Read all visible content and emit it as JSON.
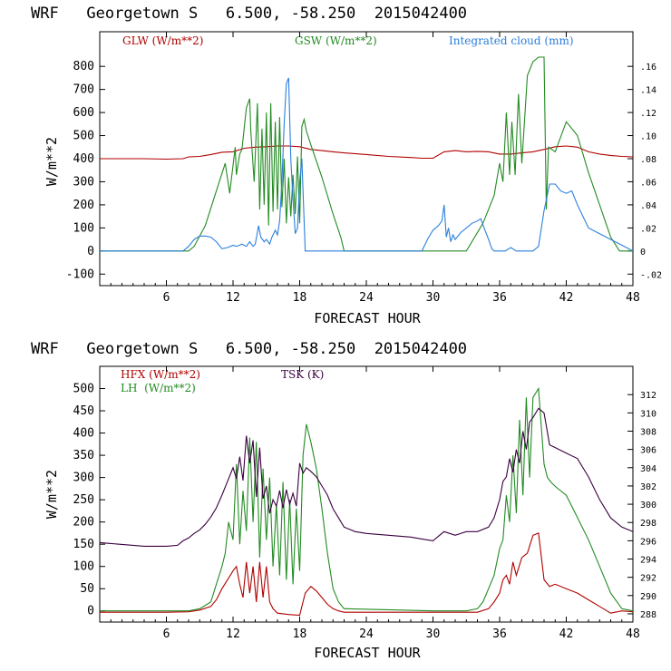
{
  "chart_data": [
    {
      "type": "line",
      "title": "WRF   Georgetown S   6.500, -58.250  2015042400",
      "xlabel": "FORECAST HOUR",
      "ylabel": "W/m**2",
      "xlim": [
        0,
        48
      ],
      "ylim": [
        -150,
        950
      ],
      "xticks": [
        6,
        12,
        18,
        24,
        30,
        36,
        42,
        48
      ],
      "yticks": [
        -100,
        0,
        100,
        200,
        300,
        400,
        500,
        600,
        700,
        800
      ],
      "y2lim": [
        -0.03,
        0.19
      ],
      "y2ticks": [
        -0.02,
        0,
        0.02,
        0.04,
        0.06,
        0.08,
        0.1,
        0.12,
        0.14,
        0.16
      ],
      "y2ticklabels": [
        "-.02",
        "0",
        ".02",
        ".04",
        ".06",
        ".08",
        ".10",
        ".12",
        ".14",
        ".16"
      ],
      "series": [
        {
          "name": "GLW (W/m**2)",
          "color": "#b00000",
          "axis": "left",
          "x": [
            0,
            4,
            6,
            7.5,
            8,
            9,
            10,
            11,
            12,
            13,
            14,
            15,
            16,
            17,
            18,
            19,
            20,
            21,
            22,
            24,
            26,
            28,
            29,
            30,
            31,
            32,
            33,
            34,
            35,
            36,
            37,
            38,
            39,
            40,
            41,
            42,
            43,
            44,
            45,
            46,
            47,
            48
          ],
          "y": [
            400,
            400,
            398,
            400,
            408,
            410,
            418,
            428,
            430,
            445,
            450,
            452,
            455,
            455,
            452,
            440,
            435,
            430,
            425,
            418,
            410,
            405,
            402,
            402,
            430,
            435,
            430,
            432,
            430,
            420,
            420,
            425,
            430,
            440,
            452,
            455,
            450,
            430,
            420,
            414,
            410,
            408
          ]
        },
        {
          "name": "GSW (W/m**2)",
          "color": "#228b22",
          "axis": "left",
          "x": [
            0,
            8,
            8.5,
            9.5,
            10.5,
            11.3,
            11.7,
            12.2,
            12.3,
            12.6,
            12.8,
            13.2,
            13.5,
            13.6,
            13.9,
            14.2,
            14.4,
            14.6,
            14.8,
            15,
            15.2,
            15.4,
            15.6,
            15.8,
            16,
            16.2,
            16.4,
            16.6,
            16.8,
            17,
            17.2,
            17.4,
            17.6,
            17.8,
            18,
            18.2,
            18.4,
            18.6,
            19,
            20,
            21,
            21.7,
            22,
            29,
            33,
            34.5,
            35.5,
            36,
            36.3,
            36.6,
            36.9,
            37.1,
            37.4,
            37.7,
            38,
            38.5,
            39,
            39.5,
            40,
            40.2,
            40.4,
            41,
            42,
            43,
            44,
            45,
            46,
            46.8,
            48
          ],
          "y": [
            0,
            0,
            20,
            110,
            260,
            380,
            250,
            450,
            330,
            420,
            440,
            620,
            660,
            520,
            300,
            640,
            180,
            530,
            200,
            600,
            110,
            640,
            170,
            560,
            180,
            580,
            190,
            400,
            120,
            320,
            150,
            330,
            160,
            410,
            120,
            540,
            570,
            520,
            460,
            320,
            160,
            60,
            0,
            0,
            0,
            120,
            240,
            380,
            300,
            600,
            330,
            560,
            330,
            680,
            380,
            760,
            820,
            840,
            840,
            180,
            450,
            430,
            560,
            500,
            340,
            200,
            60,
            0,
            0
          ]
        },
        {
          "name": "Integrated cloud (mm)",
          "color": "#2a7fdc",
          "axis": "right",
          "x": [
            0,
            7.5,
            8,
            8.5,
            9,
            9.5,
            10,
            10.5,
            11,
            11.5,
            12,
            12.3,
            12.8,
            13.2,
            13.5,
            13.8,
            14,
            14.3,
            14.5,
            14.8,
            15,
            15.3,
            15.5,
            15.8,
            16,
            16.2,
            16.4,
            16.6,
            16.8,
            17,
            17.2,
            17.4,
            17.6,
            17.8,
            18,
            18.2,
            18.5,
            29,
            29.5,
            30,
            30.5,
            30.8,
            31,
            31.2,
            31.4,
            31.6,
            31.8,
            32,
            32.5,
            33,
            33.5,
            34,
            34.3,
            34.6,
            35,
            35.3,
            35.5,
            36,
            36.5,
            37,
            37.5,
            38,
            38.5,
            39,
            39.5,
            40,
            40.5,
            41,
            41.5,
            42,
            42.5,
            43,
            43.5,
            44,
            48
          ],
          "y": [
            0,
            0,
            0.004,
            0.01,
            0.013,
            0.013,
            0.012,
            0.008,
            0.002,
            0.003,
            0.005,
            0.004,
            0.006,
            0.004,
            0.008,
            0.004,
            0.006,
            0.022,
            0.012,
            0.008,
            0.01,
            0.006,
            0.012,
            0.018,
            0.014,
            0.026,
            0.06,
            0.11,
            0.145,
            0.15,
            0.08,
            0.045,
            0.015,
            0.02,
            0.06,
            0.08,
            0,
            0,
            0.01,
            0.018,
            0.022,
            0.026,
            0.04,
            0.012,
            0.02,
            0.008,
            0.014,
            0.01,
            0.016,
            0.02,
            0.024,
            0.026,
            0.028,
            0.02,
            0.01,
            0.002,
            0,
            0,
            0,
            0.003,
            0,
            0,
            0,
            0,
            0.004,
            0.035,
            0.058,
            0.058,
            0.052,
            0.05,
            0.052,
            0.04,
            0.03,
            0.02,
            0
          ]
        }
      ]
    },
    {
      "type": "line",
      "title": "WRF   Georgetown S   6.500, -58.250  2015042400",
      "xlabel": "FORECAST HOUR",
      "ylabel": "W/m**2",
      "xlim": [
        0,
        48
      ],
      "ylim": [
        -25,
        550
      ],
      "xticks": [
        6,
        12,
        18,
        24,
        30,
        36,
        42,
        48
      ],
      "yticks": [
        0,
        50,
        100,
        150,
        200,
        250,
        300,
        350,
        400,
        450,
        500
      ],
      "y2lim": [
        287.1,
        315.1
      ],
      "y2ticks": [
        288,
        290,
        292,
        294,
        296,
        298,
        300,
        302,
        304,
        306,
        308,
        310,
        312
      ],
      "series": [
        {
          "name": "HFX (W/m**2)",
          "color": "#b00000",
          "axis": "left",
          "x": [
            0,
            6,
            8,
            9,
            10,
            10.5,
            11,
            11.5,
            12,
            12.3,
            12.6,
            12.9,
            13.2,
            13.5,
            13.8,
            14.1,
            14.4,
            14.7,
            15,
            15.3,
            15.6,
            16,
            17,
            18,
            18.5,
            19,
            19.5,
            20,
            20.5,
            21,
            21.5,
            22,
            30,
            34,
            35,
            35.5,
            36,
            36.3,
            36.6,
            36.9,
            37.2,
            37.5,
            38,
            38.5,
            39,
            39.5,
            40,
            40.5,
            41,
            42,
            43,
            44,
            45,
            46,
            47,
            48
          ],
          "y": [
            -3,
            -3,
            -2,
            2,
            10,
            25,
            50,
            70,
            90,
            100,
            60,
            30,
            110,
            40,
            100,
            20,
            110,
            30,
            100,
            20,
            5,
            -5,
            -8,
            -10,
            40,
            55,
            45,
            30,
            15,
            5,
            0,
            -3,
            -3,
            -3,
            5,
            20,
            40,
            70,
            80,
            60,
            110,
            80,
            120,
            130,
            170,
            175,
            70,
            55,
            60,
            50,
            40,
            25,
            10,
            -5,
            0,
            -2
          ]
        },
        {
          "name": "LH  (W/m**2)",
          "color": "#228b22",
          "axis": "left",
          "x": [
            0,
            8,
            9,
            10,
            10.5,
            11,
            11.3,
            11.6,
            12,
            12.3,
            12.6,
            12.9,
            13.2,
            13.5,
            13.8,
            14.1,
            14.4,
            14.7,
            15,
            15.3,
            15.6,
            15.9,
            16.2,
            16.5,
            16.8,
            17.1,
            17.4,
            17.7,
            18,
            18.3,
            18.6,
            19,
            19.5,
            20,
            20.5,
            21,
            21.5,
            22,
            30,
            33,
            34,
            34.5,
            35,
            35.5,
            36,
            36.3,
            36.6,
            36.9,
            37.2,
            37.5,
            37.8,
            38.1,
            38.4,
            38.7,
            39,
            39.5,
            40,
            40.3,
            40.6,
            41,
            42,
            43,
            44,
            45,
            46,
            47,
            48
          ],
          "y": [
            0,
            0,
            5,
            20,
            60,
            100,
            130,
            200,
            160,
            330,
            150,
            270,
            180,
            390,
            200,
            380,
            120,
            320,
            160,
            300,
            100,
            240,
            80,
            290,
            70,
            250,
            60,
            230,
            90,
            350,
            420,
            380,
            320,
            230,
            130,
            50,
            20,
            5,
            0,
            0,
            5,
            20,
            50,
            80,
            140,
            160,
            260,
            200,
            350,
            220,
            430,
            260,
            480,
            300,
            480,
            500,
            330,
            300,
            290,
            280,
            260,
            210,
            160,
            100,
            40,
            5,
            0
          ]
        },
        {
          "name": "TSK (K)",
          "color": "#3a0040",
          "axis": "right",
          "x": [
            0,
            1,
            2,
            3,
            4,
            5,
            6,
            7,
            7.5,
            8,
            8.5,
            9,
            9.5,
            10,
            10.5,
            11,
            11.5,
            12,
            12.3,
            12.6,
            12.9,
            13.2,
            13.5,
            13.8,
            14.1,
            14.4,
            14.7,
            15,
            15.3,
            15.6,
            15.9,
            16.2,
            16.5,
            16.8,
            17.1,
            17.4,
            17.7,
            18,
            18.3,
            18.6,
            19,
            19.5,
            20,
            20.5,
            21,
            21.5,
            22,
            23,
            24,
            26,
            28,
            29,
            30,
            30.5,
            31,
            32,
            33,
            34,
            35,
            35.5,
            36,
            36.3,
            36.6,
            36.9,
            37.2,
            37.5,
            37.8,
            38.1,
            38.4,
            38.7,
            39,
            39.5,
            40,
            40.5,
            41,
            42,
            43,
            44,
            45,
            46,
            47,
            48
          ],
          "y": [
            295.8,
            295.7,
            295.6,
            295.5,
            295.4,
            295.4,
            295.4,
            295.5,
            296,
            296.3,
            296.8,
            297.2,
            297.8,
            298.6,
            299.6,
            301,
            302.5,
            304,
            302.8,
            305.2,
            302.6,
            307.5,
            304.5,
            307,
            300.8,
            306.2,
            300.6,
            302,
            299,
            300.5,
            299.8,
            301.5,
            299.6,
            301.6,
            300,
            301.2,
            299.8,
            304.5,
            303.4,
            304,
            303.6,
            303,
            302,
            301,
            299.5,
            298.5,
            297.5,
            297,
            296.8,
            296.6,
            296.4,
            296.2,
            296,
            296.5,
            297,
            296.6,
            297,
            297,
            297.5,
            298.5,
            300.5,
            302.5,
            303,
            305,
            303.5,
            306,
            304.5,
            308,
            306,
            309,
            309.5,
            310.5,
            310,
            306.5,
            306.2,
            305.6,
            305,
            303,
            300.5,
            298.5,
            297.5,
            297
          ]
        }
      ]
    }
  ],
  "top_legend": {
    "glw": "GLW (W/m**2)",
    "gsw": "GSW (W/m**2)",
    "cloud": "Integrated cloud (mm)"
  },
  "bottom_legend": {
    "hfx": "HFX (W/m**2)",
    "lh": "LH  (W/m**2)",
    "tsk": "TSK (K)"
  },
  "colors": {
    "red": "#b00000",
    "green": "#228b22",
    "blue": "#2a7fdc",
    "purple": "#3a0040",
    "legend_purple": "#3a0040"
  }
}
